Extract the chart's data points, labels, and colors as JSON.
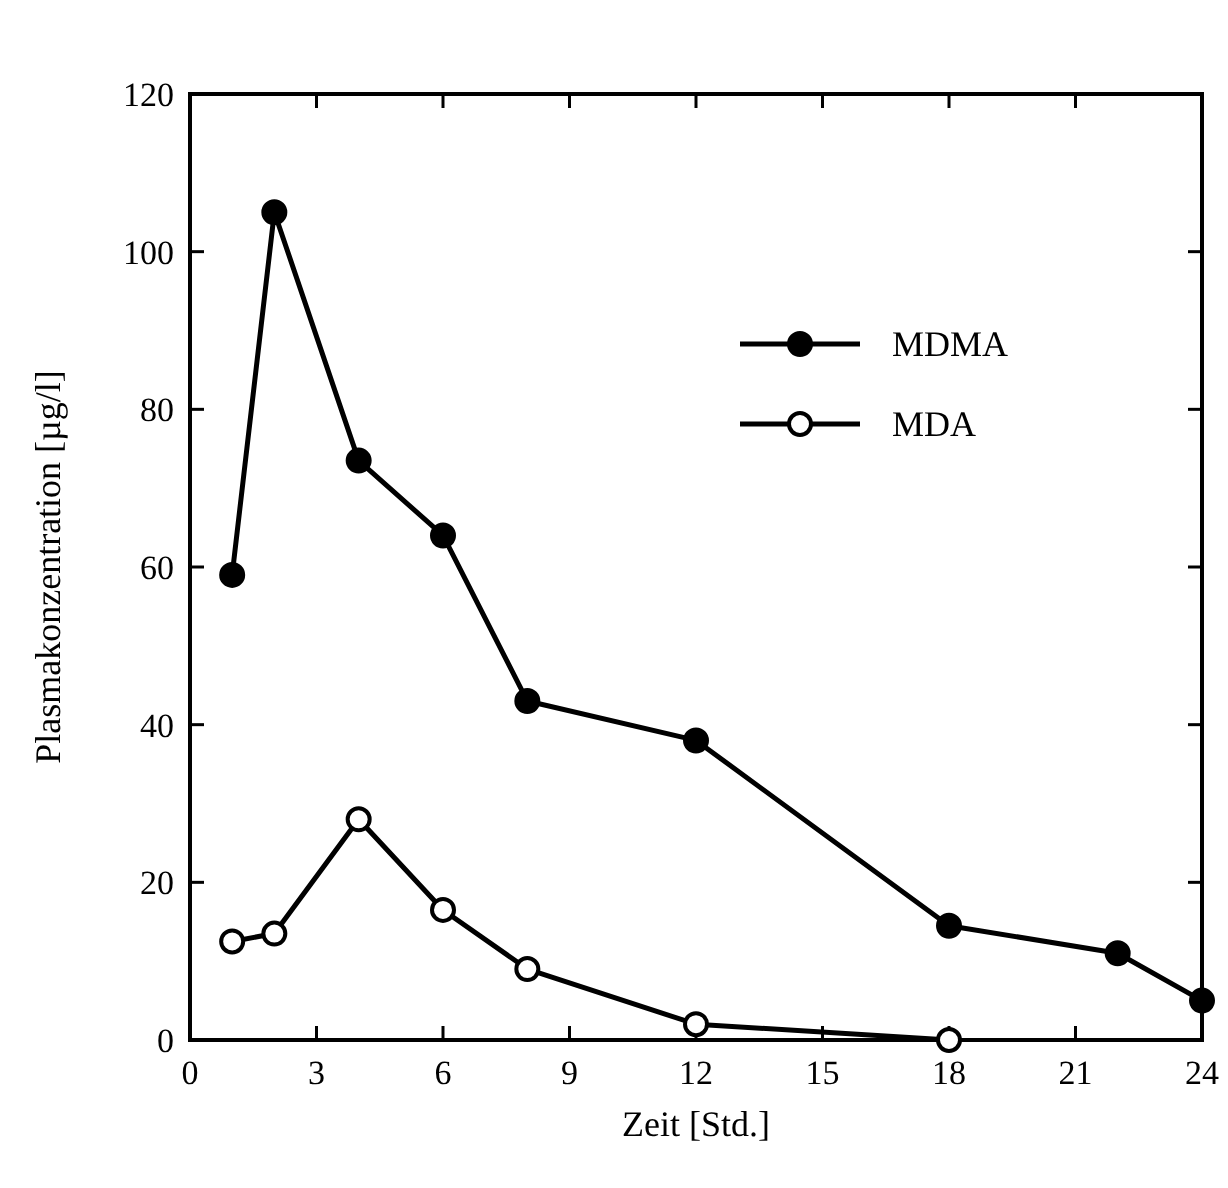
{
  "chart_data": {
    "type": "line",
    "xlabel": "Zeit [Std.]",
    "ylabel": "Plasmakonzentration [µg/l]",
    "xlim": [
      0,
      24
    ],
    "xticks": [
      0,
      3,
      6,
      9,
      12,
      15,
      18,
      21,
      24
    ],
    "ylim": [
      0,
      120
    ],
    "yticks": [
      0,
      20,
      40,
      60,
      80,
      100,
      120
    ],
    "grid": false,
    "legend": "top right",
    "line_style": "solid",
    "series": [
      {
        "name": "MDMA",
        "color": "#000000",
        "marker": "circle",
        "x": [
          1,
          2,
          4,
          6,
          8,
          12,
          18,
          22,
          24
        ],
        "values": [
          59,
          105,
          73.5,
          64,
          43,
          38,
          14.5,
          11,
          5
        ]
      },
      {
        "name": "MDA",
        "color": "#000000",
        "marker": "circle",
        "x": [
          1,
          2,
          4,
          6,
          8,
          12,
          18
        ],
        "values": [
          12.5,
          13.5,
          28,
          16.5,
          9,
          2,
          0
        ]
      }
    ]
  }
}
